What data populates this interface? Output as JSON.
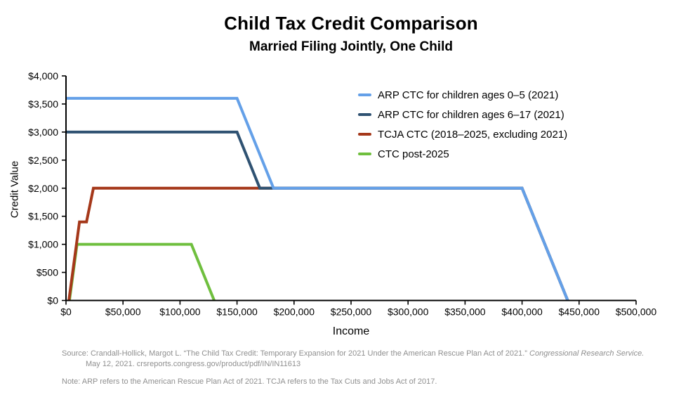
{
  "title": "Child Tax Credit Comparison",
  "subtitle": "Married Filing Jointly, One Child",
  "chart_data": {
    "type": "line",
    "title": "Child Tax Credit Comparison",
    "subtitle": "Married Filing Jointly, One Child",
    "xlabel": "Income",
    "ylabel": "Credit Value",
    "xlim": [
      0,
      500000
    ],
    "ylim": [
      0,
      4000
    ],
    "grid": false,
    "legend_position": "upper-right-inside",
    "axis_color": "#000000",
    "x_ticks": [
      {
        "value": 0,
        "label": "$0"
      },
      {
        "value": 50000,
        "label": "$50,000"
      },
      {
        "value": 100000,
        "label": "$100,000"
      },
      {
        "value": 150000,
        "label": "$150,000"
      },
      {
        "value": 200000,
        "label": "$200,000"
      },
      {
        "value": 250000,
        "label": "$250,000"
      },
      {
        "value": 300000,
        "label": "$300,000"
      },
      {
        "value": 350000,
        "label": "$350,000"
      },
      {
        "value": 400000,
        "label": "$400,000"
      },
      {
        "value": 450000,
        "label": "$450,000"
      },
      {
        "value": 500000,
        "label": "$500,000"
      }
    ],
    "y_ticks": [
      {
        "value": 0,
        "label": "$0"
      },
      {
        "value": 500,
        "label": "$500"
      },
      {
        "value": 1000,
        "label": "$1,000"
      },
      {
        "value": 1500,
        "label": "$1,500"
      },
      {
        "value": 2000,
        "label": "$2,000"
      },
      {
        "value": 2500,
        "label": "$2,500"
      },
      {
        "value": 3000,
        "label": "$3,000"
      },
      {
        "value": 3500,
        "label": "$3,500"
      },
      {
        "value": 4000,
        "label": "$4,000"
      }
    ],
    "series": [
      {
        "name": "ARP CTC for children ages 0–5 (2021)",
        "color": "#64A0E8",
        "points": [
          [
            0,
            3600
          ],
          [
            150000,
            3600
          ],
          [
            182000,
            2000
          ],
          [
            400000,
            2000
          ],
          [
            440000,
            0
          ]
        ]
      },
      {
        "name": "ARP CTC for children ages 6–17 (2021)",
        "color": "#2F5272",
        "points": [
          [
            0,
            3000
          ],
          [
            150000,
            3000
          ],
          [
            170000,
            2000
          ],
          [
            400000,
            2000
          ],
          [
            440000,
            0
          ]
        ]
      },
      {
        "name": "TCJA CTC (2018–2025, excluding 2021)",
        "color": "#A5381A",
        "points": [
          [
            2500,
            0
          ],
          [
            11833,
            1400
          ],
          [
            18000,
            1400
          ],
          [
            24000,
            2000
          ],
          [
            400000,
            2000
          ],
          [
            440000,
            0
          ]
        ]
      },
      {
        "name": "CTC post-2025",
        "color": "#6FBF3E",
        "points": [
          [
            3000,
            0
          ],
          [
            9667,
            1000
          ],
          [
            110000,
            1000
          ],
          [
            130000,
            0
          ]
        ]
      }
    ]
  },
  "source": {
    "line1_prefix": "Source: Crandall-Hollick, Margot L. “The Child Tax Credit: Temporary Expansion for 2021 Under the American Rescue Plan Act of 2021.” ",
    "line1_italic": "Congressional Research Service.",
    "line2": "May 12, 2021. crsreports.congress.gov/product/pdf/IN/IN11613",
    "note": "Note: ARP refers to the American Rescue Plan Act of 2021. TCJA refers to the Tax Cuts and Jobs Act of 2017."
  }
}
